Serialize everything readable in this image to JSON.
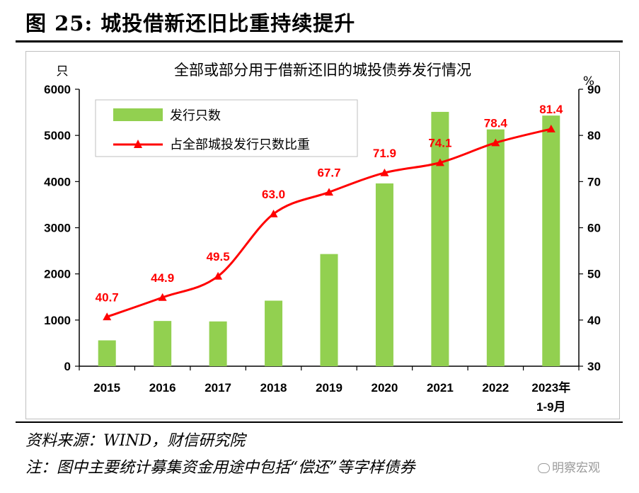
{
  "figure": {
    "title": "图 25:  城投借新还旧比重持续提升",
    "source": "资料来源：WIND，财信研究院",
    "note": "注：图中主要统计募集资金用途中包括“偿还”等字样债券",
    "watermark": "明察宏观"
  },
  "chart_data": {
    "type": "bar",
    "title": "全部或部分用于借新还旧的城投债券发行情况",
    "categories": [
      "2015",
      "2016",
      "2017",
      "2018",
      "2019",
      "2020",
      "2021",
      "2022",
      "2023年 1-9月"
    ],
    "category_lines": [
      [
        "2015"
      ],
      [
        "2016"
      ],
      [
        "2017"
      ],
      [
        "2018"
      ],
      [
        "2019"
      ],
      [
        "2020"
      ],
      [
        "2021"
      ],
      [
        "2022"
      ],
      [
        "2023年",
        "1-9月"
      ]
    ],
    "y_left": {
      "unit": "只",
      "min": 0,
      "max": 6000,
      "ticks": [
        0,
        1000,
        2000,
        3000,
        4000,
        5000,
        6000
      ]
    },
    "y_right": {
      "unit": "%",
      "min": 30,
      "max": 90,
      "ticks": [
        30,
        40,
        50,
        60,
        70,
        80,
        90
      ]
    },
    "series": [
      {
        "name": "发行只数",
        "type": "bar",
        "axis": "left",
        "color": "#92d050",
        "values": [
          560,
          980,
          970,
          1420,
          2430,
          3960,
          5510,
          5130,
          5430
        ]
      },
      {
        "name": "占全部城投发行只数比重",
        "type": "line",
        "axis": "right",
        "color": "#ff0000",
        "values": [
          40.7,
          44.9,
          49.5,
          63.0,
          67.7,
          71.9,
          74.1,
          78.4,
          81.4
        ],
        "labels": [
          "40.7",
          "44.9",
          "49.5",
          "63.0",
          "67.7",
          "71.9",
          "74.1",
          "78.4",
          "81.4"
        ]
      }
    ],
    "legend": {
      "position": "top-left"
    },
    "grid": false
  }
}
